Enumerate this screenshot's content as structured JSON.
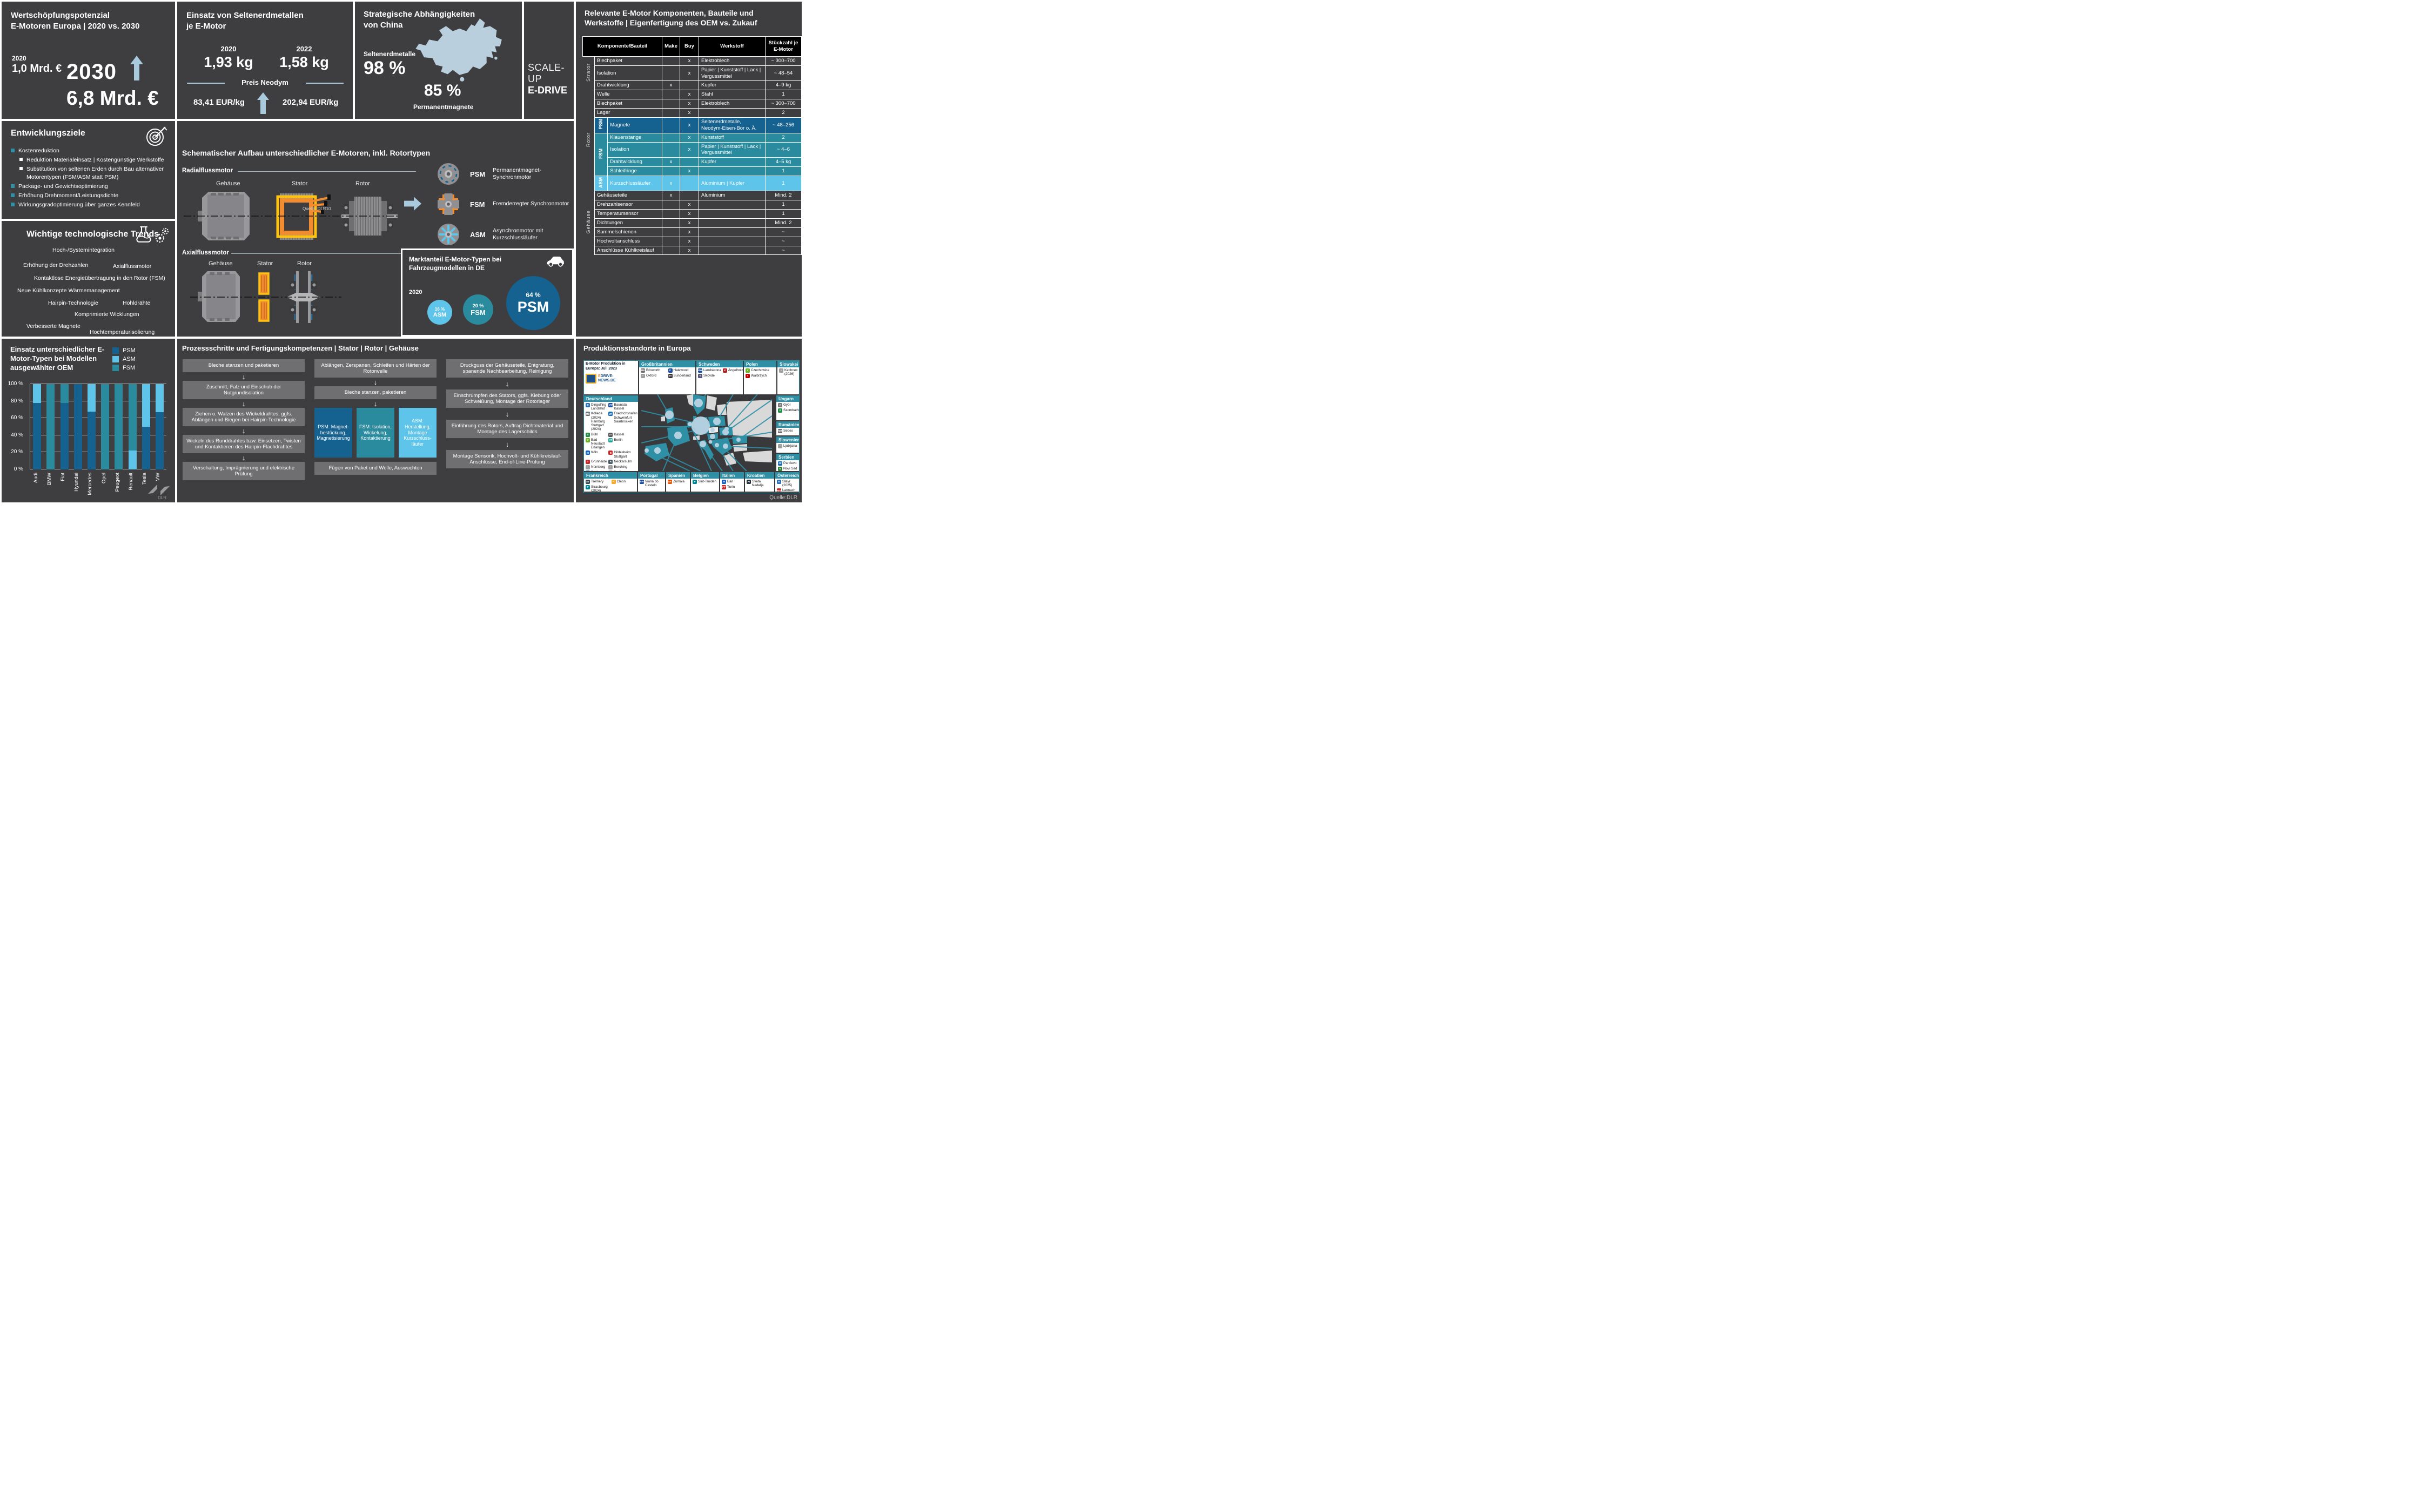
{
  "colors": {
    "panel": "#3e3e40",
    "psm": "#15618f",
    "fsm": "#2a8b9e",
    "asm": "#5ec4e9",
    "accent_blue": "#a9c9dc",
    "teal": "#2e8fa5",
    "orange": "#f28c30",
    "yellow": "#ffc20e"
  },
  "wertschoepfung": {
    "title": "Wertschöpfungspotenzial\nE-Motoren Europa | 2020 vs. 2030",
    "year_from": "2020",
    "value_from": "1,0 Mrd. €",
    "year_to": "2030",
    "value_to": "6,8 Mrd. €"
  },
  "seltenerd": {
    "title": "Einsatz von Seltenerdmetallen\nje E-Motor",
    "year1": "2020",
    "value1": "1,93 kg",
    "year2": "2022",
    "value2": "1,58 kg",
    "divider": "Preis Neodym",
    "price_from": "83,41 EUR/kg",
    "price_to": "202,94 EUR/kg"
  },
  "china": {
    "title": "Strategische Abhängigkeiten\nvon China",
    "label1": "Seltenerdmetalle",
    "value1": "98 %",
    "value2": "85 %",
    "label2": "Permanentmagnete"
  },
  "scaleup": {
    "line1": "SCALE-UP",
    "line2": "E-DRIVE"
  },
  "komponenten": {
    "title": "Relevante E-Motor Komponenten, Bauteile und Werkstoffe | Eigenfertigung des OEM vs. Zukauf",
    "headers": {
      "component": "Komponente/Bauteil",
      "make": "Make",
      "buy": "Buy",
      "werkstoff": "Werkstoff",
      "qty": "Stückzahl je E-Motor"
    },
    "rows": [
      {
        "group": "Strator",
        "gspan": 3,
        "comp": "Blechpaket",
        "make": "",
        "buy": "x",
        "werk": "Elektroblech",
        "qty": "~ 300–700",
        "type": ""
      },
      {
        "comp": "Isolation",
        "make": "",
        "buy": "x",
        "werk": "Papier | Kunststoff | Lack | Vergussmittel",
        "qty": "~ 48–54",
        "type": ""
      },
      {
        "comp": "Drahtwicklung",
        "make": "x",
        "buy": "",
        "werk": "Kupfer",
        "qty": "4–9 kg",
        "type": ""
      },
      {
        "group": "Rotor",
        "gspan": 9,
        "comp": "Welle",
        "make": "",
        "buy": "x",
        "werk": "Stahl",
        "qty": "1",
        "type": ""
      },
      {
        "comp": "Blechpaket",
        "make": "",
        "buy": "x",
        "werk": "Elektroblech",
        "qty": "~ 300–700",
        "type": ""
      },
      {
        "comp": "Lager",
        "make": "",
        "buy": "x",
        "werk": "",
        "qty": "2",
        "type": ""
      },
      {
        "sub": "PSM",
        "sspan": 1,
        "comp": "Magnete",
        "make": "",
        "buy": "x",
        "werk": "Seltenerdmetalle, Neodym-Eisen-Bor o. Ä.",
        "qty": "~ 48–256",
        "type": "psm"
      },
      {
        "sub": "FSM",
        "sspan": 4,
        "comp": "Klauenstange",
        "make": "",
        "buy": "x",
        "werk": "Kunststoff",
        "qty": "2",
        "type": "fsm"
      },
      {
        "comp": "Isolation",
        "make": "",
        "buy": "x",
        "werk": "Papier | Kunststoff | Lack | Vergussmittel",
        "qty": "~ 4–6",
        "type": "fsm"
      },
      {
        "comp": "Drahtwicklung",
        "make": "x",
        "buy": "",
        "werk": "Kupfer",
        "qty": "4–5 kg",
        "type": "fsm"
      },
      {
        "comp": "Schleifringe",
        "make": "",
        "buy": "x",
        "werk": "",
        "qty": "1",
        "type": "fsm"
      },
      {
        "sub": "ASM",
        "sspan": 1,
        "comp": "Kurzschlussläufer",
        "make": "x",
        "buy": "",
        "werk": "Aluminium | Kupfer",
        "qty": "1",
        "type": "asm"
      },
      {
        "group": "Gehäuse",
        "gspan": 7,
        "comp": "Gehäuseteile",
        "make": "x",
        "buy": "",
        "werk": "Aluminium",
        "qty": "Mind. 2",
        "type": ""
      },
      {
        "comp": "Drehzahlsensor",
        "make": "",
        "buy": "x",
        "werk": "",
        "qty": "1",
        "type": ""
      },
      {
        "comp": "Temperatursensor",
        "make": "",
        "buy": "x",
        "werk": "",
        "qty": "1",
        "type": ""
      },
      {
        "comp": "Dichtungen",
        "make": "",
        "buy": "x",
        "werk": "",
        "qty": "Mind. 2",
        "type": ""
      },
      {
        "comp": "Sammelschienen",
        "make": "",
        "buy": "x",
        "werk": "",
        "qty": "~",
        "type": ""
      },
      {
        "comp": "Hochvoltanschluss",
        "make": "",
        "buy": "x",
        "werk": "",
        "qty": "~",
        "type": ""
      },
      {
        "comp": "Anschlüsse Kühlkreislauf",
        "make": "",
        "buy": "x",
        "werk": "",
        "qty": "~",
        "type": ""
      }
    ]
  },
  "ziele": {
    "title": "Entwicklungsziele",
    "items": [
      {
        "level": 1,
        "text": "Kostenreduktion"
      },
      {
        "level": 2,
        "text": "Reduktion Materialeinsatz | Kostengünstige Werkstoffe"
      },
      {
        "level": 2,
        "text": "Substitution von seltenen Erden durch Bau alternativer Motorentypen (FSM/ASM statt PSM)"
      },
      {
        "level": 1,
        "text": "Package- und Gewichtsoptimierung"
      },
      {
        "level": 1,
        "text": "Erhöhung Drehmoment/Leistungsdichte"
      },
      {
        "level": 1,
        "text": "Wirkungsgradoptimierung über ganzes Kennfeld"
      }
    ]
  },
  "trends": {
    "title": "Wichtige technologische Trends",
    "items": [
      "Hoch-/Systemintegration",
      "Erhöhung der Drehzahlen",
      "Axialflussmotor",
      "Kontaktlose Energieübertragung in den Rotor (FSM)",
      "Neue Kühlkonzepte Wärmemanagement",
      "Hairpin-Technologie",
      "Hohldrähte",
      "Komprimierte Wicklungen",
      "Verbesserte Magnete",
      "Hochtemperaturisolierung"
    ]
  },
  "aufbau": {
    "title": "Schematischer Aufbau unterschiedlicher E-Motoren, inkl. Rotortypen",
    "radial": "Radialflussmotor",
    "axial": "Axialflussmotor",
    "parts": [
      "Gehäuse",
      "Stator",
      "Rotor"
    ],
    "quelle": "Quelle: DLR10",
    "rotor_types": [
      {
        "abbr": "PSM",
        "name": "Permanentmagnet-Synchronmotor"
      },
      {
        "abbr": "FSM",
        "name": "Fremderregter Synchronmotor"
      },
      {
        "abbr": "ASM",
        "name": "Asynchronmotor mit Kurzschlussläufer"
      }
    ]
  },
  "marktanteil": {
    "title": "Marktanteil E-Motor-Typen bei Fahrzeugmodellen in DE",
    "year": "2020"
  },
  "oem": {
    "dlr": "DLR"
  },
  "prozess": {
    "title": "Prozessschritte und Fertigungskompetenzen | Stator | Rotor | Gehäuse",
    "stator": [
      "Bleche stanzen und paketieren",
      "Zuschnitt, Falz und Einschub der Nutgrundisolation",
      "Ziehen o. Walzen des Wickeldrahtes, ggfs. Ablängen und Biegen bei Hairpin-Technologie",
      "Wickeln des Runddrahtes bzw. Einsetzen, Twisten und Kontaktieren des Hairpin-Flachdrahtes",
      "Verschaltung, Imprägnierung und elektrische Prüfung"
    ],
    "rotor_pre": [
      "Ablängen, Zerspanen, Schleifen und Härten der Rotorwelle",
      "Bleche stanzen, paketieren"
    ],
    "rotor_branches": [
      {
        "type": "psm",
        "label": "PSM: Magnet­bestückung, Magnetisie­rung"
      },
      {
        "type": "fsm",
        "label": "FSM: Isolation, Wickelung, Kontaktierung"
      },
      {
        "type": "asm",
        "label": "ASM: Herstellung, Montage Kurzschluss­läufer"
      }
    ],
    "rotor_post": "Fügen von Paket und Welle, Auswuchten",
    "gehaeuse": [
      "Druckguss der Gehäuseteile, Entgratung, spanende Nachbearbeitung, Reinigung",
      "Einschrumpfen des Stators, ggfs. Klebung oder Schweißung, Montage der Rotorlager",
      "Einführung des Rotors, Auftrag Dichtmaterial und Montage des Lagerschilds",
      "Montage Sensorik, Hochvolt- und Kühlkreislauf-Anschlüsse, End-of-Line-Prüfung"
    ]
  },
  "karte": {
    "title": "Produktionsstandorte in Europa",
    "legend": {
      "line1": "E-Motor Produktion in",
      "line2": "Europa: Juli 2023",
      "logo": "EDRIVE-NEWS.DE"
    },
    "quelle": "Quelle:DLR",
    "countries": [
      {
        "id": "gb",
        "name": "Großbritannien",
        "entries": [
          {
            "logo": "mercedes",
            "city": "Brixworth"
          },
          {
            "logo": "ford",
            "city": "Halewood"
          },
          {
            "logo": "generic",
            "city": "Oxford"
          },
          {
            "logo": "saietta",
            "city": "Sunderland"
          }
        ]
      },
      {
        "id": "se",
        "name": "Schweden",
        "entries": [
          {
            "logo": "borgwarner",
            "city": "Landskrona"
          },
          {
            "logo": "koenigsegg",
            "city": "Ängelholm"
          },
          {
            "logo": "volvo",
            "city": "Skövde"
          }
        ]
      },
      {
        "id": "pl",
        "name": "Polen",
        "entries": [
          {
            "logo": "valeo",
            "city": "Czechowice"
          },
          {
            "logo": "toyota",
            "city": "Wałbrzych"
          }
        ]
      },
      {
        "id": "sk",
        "name": "Slowakei",
        "entries": [
          {
            "logo": "generic",
            "city": "Kechnec (2026)"
          }
        ]
      },
      {
        "id": "de",
        "name": "Deutschland",
        "entries": [
          {
            "logo": "bmw",
            "city": "Dingolfing Landshut"
          },
          {
            "logo": "vw",
            "city": "Baunatal Kassel"
          },
          {
            "logo": "mercedes",
            "city": "Kölleda (2024) Hamburg Stuttgart (2024)"
          },
          {
            "logo": "zf",
            "city": "Friedrichshafen Schweinfurt Saarbrücken"
          },
          {
            "logo": "schaeffler",
            "city": "Bühl"
          },
          {
            "logo": "daimler-truck",
            "city": "Kassel"
          },
          {
            "logo": "valeo",
            "city": "Bad Neustadt Erlangen"
          },
          {
            "logo": "vitesco",
            "city": "Berlin"
          },
          {
            "logo": "marelli",
            "city": "Köln"
          },
          {
            "logo": "bosch",
            "city": "Hildesheim Stuttgart"
          },
          {
            "logo": "tesla",
            "city": "Grünheide"
          },
          {
            "logo": "rheinmetall",
            "city": "Neckarsulm"
          },
          {
            "logo": "generic",
            "city": "Nürnberg"
          },
          {
            "logo": "generic",
            "city": "Berching"
          },
          {
            "logo": "hofer",
            "city": "Dettingen"
          },
          {
            "logo": "generic",
            "city": "Berlin"
          }
        ]
      },
      {
        "id": "hu",
        "name": "Ungarn",
        "entries": [
          {
            "logo": "audi",
            "city": "Györ"
          },
          {
            "logo": "schaeffler",
            "city": "Szombathely"
          }
        ]
      },
      {
        "id": "ro",
        "name": "Rumänien",
        "entries": [
          {
            "logo": "mercedes",
            "city": "Sebes"
          }
        ]
      },
      {
        "id": "si",
        "name": "Slowenien",
        "entries": [
          {
            "logo": "generic",
            "city": "Ljubljana"
          }
        ]
      },
      {
        "id": "rs",
        "name": "Serbien",
        "entries": [
          {
            "logo": "zf",
            "city": "Pančevo"
          },
          {
            "logo": "nidec",
            "city": "Novi Sad"
          }
        ]
      },
      {
        "id": "fr",
        "name": "Frankreich",
        "entries": [
          {
            "logo": "stellantis",
            "city": "Trémery"
          },
          {
            "logo": "renault",
            "city": "Cléon"
          },
          {
            "logo": "punch",
            "city": "Strasbourg (2024)"
          }
        ]
      },
      {
        "id": "pt",
        "name": "Portugal",
        "entries": [
          {
            "logo": "borgwarner",
            "city": "Viana do Castelo"
          }
        ]
      },
      {
        "id": "es",
        "name": "Spanien",
        "entries": [
          {
            "logo": "gkn",
            "city": "Zumaia"
          }
        ]
      },
      {
        "id": "be",
        "name": "Belgien",
        "entries": [
          {
            "logo": "punch",
            "city": "Sint-Truiden"
          }
        ]
      },
      {
        "id": "it",
        "name": "Italien",
        "entries": [
          {
            "logo": "marelli",
            "city": "Bari"
          },
          {
            "logo": "fpt",
            "city": "Turin"
          }
        ]
      },
      {
        "id": "hr",
        "name": "Kroatien",
        "entries": [
          {
            "logo": "rimac",
            "city": "Sveta Nedelja"
          }
        ]
      },
      {
        "id": "at",
        "name": "Österreich",
        "entries": [
          {
            "logo": "bmw",
            "city": "Steyr (2025)"
          },
          {
            "logo": "magna",
            "city": "Lannach"
          }
        ]
      }
    ]
  },
  "chart_data": [
    {
      "type": "bar",
      "stacked": true,
      "title": "Einsatz unterschiedlicher E-Motor-Typen bei Modellen ausgewählter OEM",
      "categories": [
        "Audi",
        "BMW",
        "Fiat",
        "Hyundai",
        "Mercedes",
        "Opel",
        "Peugeot",
        "Renault",
        "Tesla",
        "VW"
      ],
      "series": [
        {
          "name": "PSM",
          "color": "#15618f",
          "values": [
            78,
            0,
            78,
            100,
            68,
            0,
            0,
            0,
            50,
            67
          ]
        },
        {
          "name": "ASM",
          "color": "#5ec4e9",
          "values": [
            22,
            0,
            0,
            0,
            32,
            0,
            0,
            22,
            50,
            33
          ]
        },
        {
          "name": "FSM",
          "color": "#2a8b9e",
          "values": [
            0,
            100,
            22,
            0,
            0,
            100,
            100,
            78,
            0,
            0
          ]
        }
      ],
      "ylim": [
        0,
        100
      ],
      "yticks": [
        "0 %",
        "20 %",
        "40 %",
        "60 %",
        "80 %",
        "100 %"
      ],
      "legend_position": "top-right",
      "grid": true
    },
    {
      "type": "bubble",
      "title": "Marktanteil E-Motor-Typen bei Fahrzeugmodellen in DE",
      "year": "2020",
      "points": [
        {
          "label": "ASM",
          "value": 16,
          "display": "16 %"
        },
        {
          "label": "FSM",
          "value": 20,
          "display": "20 %"
        },
        {
          "label": "PSM",
          "value": 64,
          "display": "64 %"
        }
      ]
    }
  ]
}
